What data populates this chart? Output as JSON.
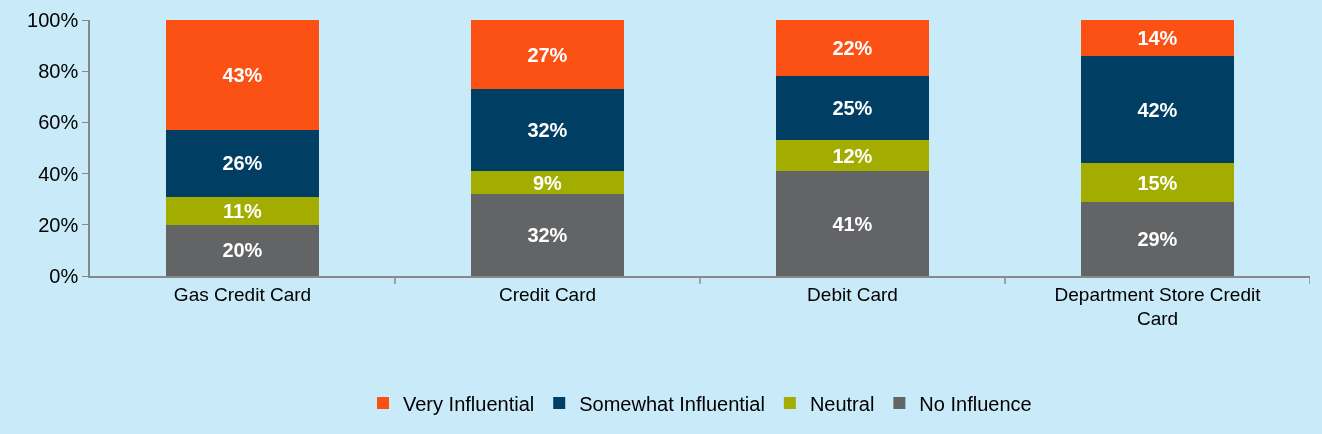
{
  "chart_data": {
    "type": "bar",
    "stacked": true,
    "categories": [
      "Gas Credit Card",
      "Credit Card",
      "Debit Card",
      "Department Store Credit Card"
    ],
    "series": [
      {
        "name": "No Influence",
        "color": "#636466",
        "values": [
          20,
          32,
          41,
          29
        ],
        "value_labels": [
          "20%",
          "32%",
          "41%",
          "29%"
        ]
      },
      {
        "name": "Neutral",
        "color": "#a3ad00",
        "values": [
          11,
          9,
          12,
          15
        ],
        "value_labels": [
          "11%",
          "9%",
          "12%",
          "15%"
        ]
      },
      {
        "name": "Somewhat Influential",
        "color": "#003f63",
        "values": [
          26,
          32,
          25,
          42
        ],
        "value_labels": [
          "26%",
          "32%",
          "25%",
          "42%"
        ]
      },
      {
        "name": "Very Influential",
        "color": "#fc5115",
        "values": [
          43,
          27,
          22,
          14
        ],
        "value_labels": [
          "43%",
          "27%",
          "22%",
          "14%"
        ]
      }
    ],
    "ylim": [
      0,
      100
    ],
    "yticks": [
      {
        "value": 0,
        "label": "0%"
      },
      {
        "value": 20,
        "label": "20%"
      },
      {
        "value": 40,
        "label": "40%"
      },
      {
        "value": 60,
        "label": "60%"
      },
      {
        "value": 80,
        "label": "80%"
      },
      {
        "value": 100,
        "label": "100%"
      }
    ],
    "grid": false,
    "legend": "bottom"
  }
}
